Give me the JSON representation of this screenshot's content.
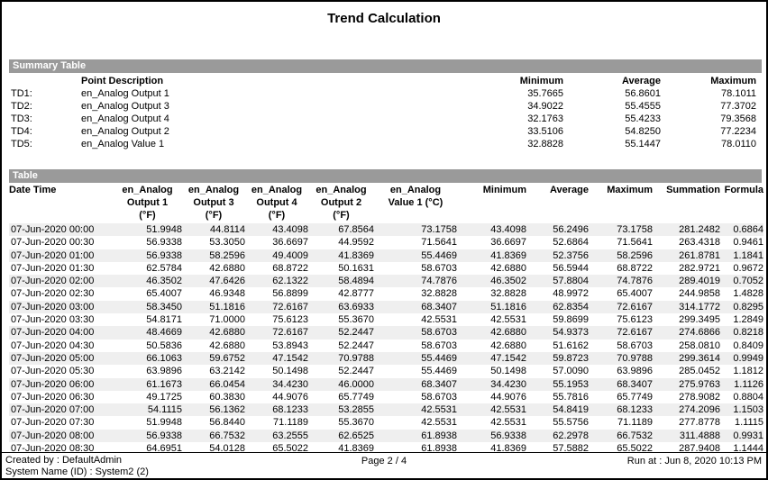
{
  "title": "Trend Calculation",
  "colors": {
    "section_bar": "#9a9a9a",
    "row_stripe": "#efefef"
  },
  "summary": {
    "section_label": "Summary Table",
    "headers": {
      "point_description": "Point Description",
      "minimum": "Minimum",
      "average": "Average",
      "maximum": "Maximum"
    },
    "rows": [
      {
        "id": "TD1:",
        "description": "en_Analog Output 1",
        "minimum": "35.7665",
        "average": "56.8601",
        "maximum": "78.1011"
      },
      {
        "id": "TD2:",
        "description": "en_Analog Output 3",
        "minimum": "34.9022",
        "average": "55.4555",
        "maximum": "77.3702"
      },
      {
        "id": "TD3:",
        "description": "en_Analog Output 4",
        "minimum": "32.1763",
        "average": "55.4233",
        "maximum": "79.3568"
      },
      {
        "id": "TD4:",
        "description": "en_Analog Output 2",
        "minimum": "33.5106",
        "average": "54.8250",
        "maximum": "77.2234"
      },
      {
        "id": "TD5:",
        "description": "en_Analog Value 1",
        "minimum": "32.8828",
        "average": "55.1447",
        "maximum": "78.0110"
      }
    ]
  },
  "table": {
    "section_label": "Table",
    "columns": [
      {
        "lines": [
          "Date Time"
        ],
        "align": "left"
      },
      {
        "lines": [
          "en_Analog",
          "Output 1",
          "(°F)"
        ],
        "align": "center"
      },
      {
        "lines": [
          "en_Analog",
          "Output 3",
          "(°F)"
        ],
        "align": "center"
      },
      {
        "lines": [
          "en_Analog",
          "Output 4",
          "(°F)"
        ],
        "align": "center"
      },
      {
        "lines": [
          "en_Analog",
          "Output 2",
          "(°F)"
        ],
        "align": "center"
      },
      {
        "lines": [
          "en_Analog",
          "Value 1 (°C)"
        ],
        "align": "center"
      },
      {
        "lines": [
          "Minimum"
        ],
        "align": "right"
      },
      {
        "lines": [
          "Average"
        ],
        "align": "right"
      },
      {
        "lines": [
          "Maximum"
        ],
        "align": "right"
      },
      {
        "lines": [
          "Summation"
        ],
        "align": "right"
      },
      {
        "lines": [
          "Formula"
        ],
        "align": "right"
      }
    ],
    "rows": [
      [
        "07-Jun-2020 00:00",
        "51.9948",
        "44.8114",
        "43.4098",
        "67.8564",
        "73.1758",
        "43.4098",
        "56.2496",
        "73.1758",
        "281.2482",
        "0.6864"
      ],
      [
        "07-Jun-2020 00:30",
        "56.9338",
        "53.3050",
        "36.6697",
        "44.9592",
        "71.5641",
        "36.6697",
        "52.6864",
        "71.5641",
        "263.4318",
        "0.9461"
      ],
      [
        "07-Jun-2020 01:00",
        "56.9338",
        "58.2596",
        "49.4009",
        "41.8369",
        "55.4469",
        "41.8369",
        "52.3756",
        "58.2596",
        "261.8781",
        "1.1841"
      ],
      [
        "07-Jun-2020 01:30",
        "62.5784",
        "42.6880",
        "68.8722",
        "50.1631",
        "58.6703",
        "42.6880",
        "56.5944",
        "68.8722",
        "282.9721",
        "0.9672"
      ],
      [
        "07-Jun-2020 02:00",
        "46.3502",
        "47.6426",
        "62.1322",
        "58.4894",
        "74.7876",
        "46.3502",
        "57.8804",
        "74.7876",
        "289.4019",
        "0.7052"
      ],
      [
        "07-Jun-2020 02:30",
        "65.4007",
        "46.9348",
        "56.8899",
        "42.8777",
        "32.8828",
        "32.8828",
        "48.9972",
        "65.4007",
        "244.9858",
        "1.4828"
      ],
      [
        "07-Jun-2020 03:00",
        "58.3450",
        "51.1816",
        "72.6167",
        "63.6933",
        "68.3407",
        "51.1816",
        "62.8354",
        "72.6167",
        "314.1772",
        "0.8295"
      ],
      [
        "07-Jun-2020 03:30",
        "54.8171",
        "71.0000",
        "75.6123",
        "55.3670",
        "42.5531",
        "42.5531",
        "59.8699",
        "75.6123",
        "299.3495",
        "1.2849"
      ],
      [
        "07-Jun-2020 04:00",
        "48.4669",
        "42.6880",
        "72.6167",
        "52.2447",
        "58.6703",
        "42.6880",
        "54.9373",
        "72.6167",
        "274.6866",
        "0.8218"
      ],
      [
        "07-Jun-2020 04:30",
        "50.5836",
        "42.6880",
        "53.8943",
        "52.2447",
        "58.6703",
        "42.6880",
        "51.6162",
        "58.6703",
        "258.0810",
        "0.8409"
      ],
      [
        "07-Jun-2020 05:00",
        "66.1063",
        "59.6752",
        "47.1542",
        "70.9788",
        "55.4469",
        "47.1542",
        "59.8723",
        "70.9788",
        "299.3614",
        "0.9949"
      ],
      [
        "07-Jun-2020 05:30",
        "63.9896",
        "63.2142",
        "50.1498",
        "52.2447",
        "55.4469",
        "50.1498",
        "57.0090",
        "63.9896",
        "285.0452",
        "1.1812"
      ],
      [
        "07-Jun-2020 06:00",
        "61.1673",
        "66.0454",
        "34.4230",
        "46.0000",
        "68.3407",
        "34.4230",
        "55.1953",
        "68.3407",
        "275.9763",
        "1.1126"
      ],
      [
        "07-Jun-2020 06:30",
        "49.1725",
        "60.3830",
        "44.9076",
        "65.7749",
        "58.6703",
        "44.9076",
        "55.7816",
        "65.7749",
        "278.9082",
        "0.8804"
      ],
      [
        "07-Jun-2020 07:00",
        "54.1115",
        "56.1362",
        "68.1233",
        "53.2855",
        "42.5531",
        "42.5531",
        "54.8419",
        "68.1233",
        "274.2096",
        "1.1503"
      ],
      [
        "07-Jun-2020 07:30",
        "51.9948",
        "56.8440",
        "71.1189",
        "55.3670",
        "42.5531",
        "42.5531",
        "55.5756",
        "71.1189",
        "277.8778",
        "1.1115"
      ],
      [
        "07-Jun-2020 08:00",
        "56.9338",
        "66.7532",
        "63.2555",
        "62.6525",
        "61.8938",
        "56.9338",
        "62.2978",
        "66.7532",
        "311.4888",
        "0.9931"
      ],
      [
        "07-Jun-2020 08:30",
        "64.6951",
        "54.0128",
        "65.5022",
        "41.8369",
        "61.8938",
        "41.8369",
        "57.5882",
        "65.5022",
        "287.9408",
        "1.1444"
      ]
    ]
  },
  "footer": {
    "created_by": "Created by : DefaultAdmin",
    "system_name": "System Name (ID) : System2 (2)",
    "page": "Page  2 / 4",
    "run_at": "Run at : Jun 8, 2020 10:13 PM"
  }
}
